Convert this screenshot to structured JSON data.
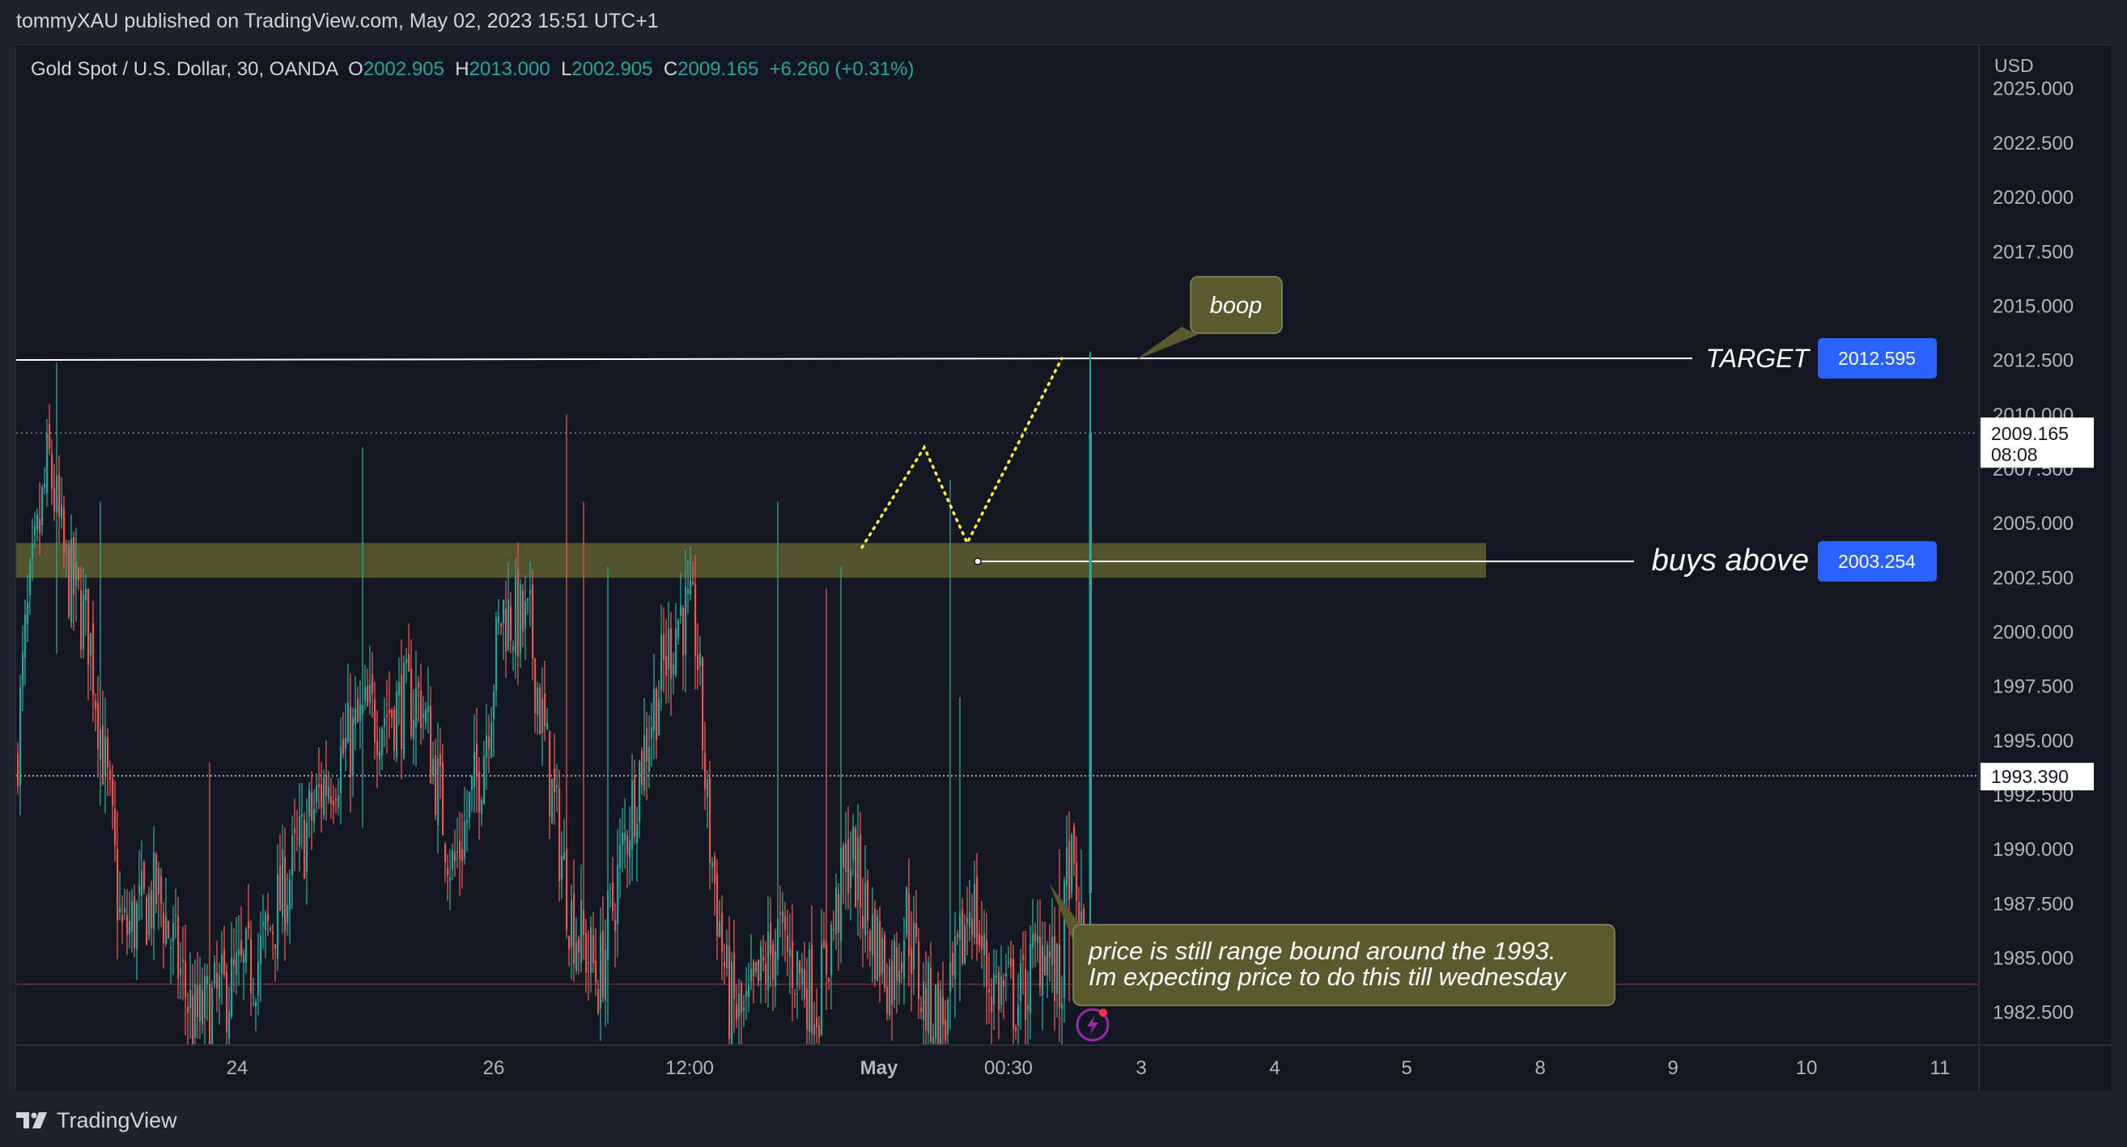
{
  "header": {
    "published": "tommyXAU published on TradingView.com, May 02, 2023 15:51 UTC+1"
  },
  "footer": {
    "brand": "TradingView"
  },
  "legend": {
    "symbol": "Gold Spot / U.S. Dollar, 30, OANDA",
    "open_label": "O",
    "open": "2002.905",
    "high_label": "H",
    "high": "2013.000",
    "low_label": "L",
    "low": "2002.905",
    "close_label": "C",
    "close": "2009.165",
    "change": "+6.260 (+0.31%)"
  },
  "colors": {
    "background": "#131722",
    "up": "#26a69a",
    "down": "#ef5350",
    "zone": "#5a5a2e",
    "label_blue": "#2962ff",
    "path": "#ffeb3b",
    "callout": "#5a5a2e"
  },
  "chart_data": {
    "type": "candlestick",
    "title": "Gold Spot / U.S. Dollar, 30, OANDA",
    "currency": "USD",
    "ylim": [
      1981.0,
      2027.0
    ],
    "y_ticks": [
      "2025.000",
      "2022.500",
      "2020.000",
      "2017.500",
      "2015.000",
      "2012.500",
      "2010.000",
      "2007.500",
      "2005.000",
      "2002.500",
      "2000.000",
      "1997.500",
      "1995.000",
      "1992.500",
      "1990.000",
      "1987.500",
      "1985.000",
      "1982.500"
    ],
    "x_ticks": [
      "24",
      "26",
      "12:00",
      "May",
      "00:30",
      "3",
      "4",
      "5",
      "8",
      "9",
      "10",
      "11"
    ],
    "last_price": "2009.165",
    "countdown": "08:08",
    "crosshair_price": "1993.390",
    "levels": [
      {
        "name": "target",
        "label": "TARGET",
        "value": 2012.595,
        "value_text": "2012.595"
      },
      {
        "name": "buys-above",
        "label": "buys above",
        "value": 2003.254,
        "value_text": "2003.254"
      }
    ],
    "zone": {
      "from": 2002.5,
      "to": 2004.1
    },
    "projected_path": [
      2003.9,
      2008.5,
      2004.1,
      2012.6
    ],
    "annotations": [
      {
        "name": "boop-callout",
        "text": "boop"
      },
      {
        "name": "range-callout",
        "lines": [
          "price is still range bound around the 1993.",
          "Im expecting price to do this till wednesday"
        ]
      }
    ]
  }
}
